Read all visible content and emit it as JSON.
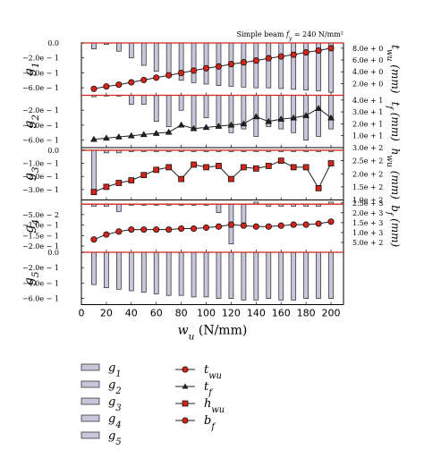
{
  "annotation": "Simple beam f_y = 240 N/mm²",
  "x_axis": {
    "label": "w_u (N/mm)",
    "ticks": [
      0,
      20,
      40,
      60,
      80,
      100,
      120,
      140,
      160,
      180,
      200
    ],
    "range": [
      0,
      210
    ]
  },
  "colors": {
    "bar_fill": "#c9c6dc",
    "bar_stroke": "#222222",
    "line": "#222222",
    "marker": "#d0261c",
    "zero_line": "#d0261c"
  },
  "chart_data": {
    "type": "bar",
    "x": [
      10,
      20,
      30,
      40,
      50,
      60,
      70,
      80,
      90,
      100,
      110,
      120,
      130,
      140,
      150,
      160,
      170,
      180,
      190,
      200
    ],
    "panels": [
      {
        "bar_label": "g1",
        "line_label": "t_wu",
        "ylabel_left": "g1",
        "ylabel_right": "t_wu (mm)",
        "left_ticks": [
          "0.0",
          "−2.0e − 1",
          "−4.0e − 1",
          "−6.0e − 1"
        ],
        "left_values": [
          0,
          -0.2,
          -0.4,
          -0.6
        ],
        "left_range": [
          0,
          -0.7
        ],
        "right_ticks": [
          "8.0e + 0",
          "6.0e + 0",
          "4.0e + 0",
          "2.0e + 0"
        ],
        "right_values": [
          8,
          6,
          4,
          2
        ],
        "right_range": [
          0,
          8.9
        ],
        "bars": [
          -0.08,
          -0.02,
          -0.11,
          -0.2,
          -0.3,
          -0.38,
          -0.45,
          -0.5,
          -0.53,
          -0.55,
          -0.57,
          -0.58,
          -0.59,
          -0.6,
          -0.6,
          -0.61,
          -0.62,
          -0.63,
          -0.64,
          -0.66
        ],
        "line": [
          1.1,
          1.5,
          1.8,
          2.2,
          2.6,
          3.0,
          3.4,
          3.8,
          4.2,
          4.6,
          4.9,
          5.3,
          5.6,
          5.9,
          6.3,
          6.6,
          6.9,
          7.3,
          7.6,
          8.0
        ],
        "marker": "circle"
      },
      {
        "bar_label": "g2",
        "line_label": "t_f",
        "ylabel_left": "g2",
        "ylabel_right": "t_f (mm)",
        "left_ticks": [
          "−2.0e − 1",
          "−4.0e − 1",
          "−6.0e − 1"
        ],
        "left_values": [
          -0.2,
          -0.4,
          -0.6
        ],
        "left_range": [
          0,
          -0.7
        ],
        "right_ticks": [
          "4.0e + 1",
          "3.0e + 1",
          "2.0e + 1",
          "1.0e + 1"
        ],
        "right_values": [
          40,
          30,
          20,
          10
        ],
        "right_range": [
          0,
          44
        ],
        "bars": [
          -0.02,
          -0.01,
          -0.01,
          -0.12,
          -0.12,
          -0.35,
          -0.42,
          -0.2,
          -0.45,
          -0.3,
          -0.4,
          -0.5,
          -0.45,
          -0.55,
          -0.42,
          -0.45,
          -0.5,
          -0.6,
          -0.55,
          -0.45
        ],
        "line": [
          7,
          8,
          9,
          10,
          11,
          12,
          13,
          19,
          16,
          17,
          18,
          19,
          20,
          26,
          22,
          24,
          25,
          27,
          33,
          25
        ],
        "marker": "triangle"
      },
      {
        "bar_label": "g3",
        "line_label": "h_wu",
        "ylabel_left": "g3",
        "ylabel_right": "h_wu (mm)",
        "left_ticks": [
          "0.0",
          "−1.0e − 1",
          "−2.0e − 1",
          "−3.0e − 1"
        ],
        "left_values": [
          0,
          -0.1,
          -0.2,
          -0.3
        ],
        "left_range": [
          0.02,
          -0.38
        ],
        "right_ticks": [
          "3.0e + 2",
          "2.5e + 2",
          "2.0e + 2",
          "1.5e + 2",
          "1.0e + 2"
        ],
        "right_values": [
          300,
          250,
          200,
          150,
          100
        ],
        "right_range": [
          100,
          300
        ],
        "bars": [
          -0.3,
          -0.02,
          -0.02,
          -0.01,
          -0.01,
          -0.01,
          -0.01,
          -0.01,
          -0.01,
          -0.01,
          -0.01,
          -0.01,
          -0.01,
          -0.01,
          -0.01,
          -0.01,
          -0.01,
          -0.01,
          -0.01,
          -0.01
        ],
        "line": [
          130,
          150,
          165,
          175,
          195,
          215,
          225,
          180,
          235,
          225,
          230,
          180,
          225,
          220,
          230,
          250,
          225,
          225,
          145,
          240
        ],
        "marker": "square"
      },
      {
        "bar_label": "g4",
        "line_label": "b_f",
        "ylabel_left": "g4",
        "ylabel_right": "b_f (mm)",
        "left_ticks": [
          "−5.0e − 2",
          "−1.0e − 1",
          "−1.5e − 1",
          "−2.0e − 1"
        ],
        "left_values": [
          -0.05,
          -0.1,
          -0.15,
          -0.2
        ],
        "left_range": [
          0.02,
          -0.23
        ],
        "right_ticks": [
          "2.5e + 3",
          "2.0e + 3",
          "1.5e + 3",
          "1.0e + 3",
          "5.0e + 2"
        ],
        "right_values": [
          2500,
          2000,
          1500,
          1000,
          500
        ],
        "right_range": [
          0,
          2650
        ],
        "bars": [
          -0.01,
          -0.01,
          -0.035,
          -0.005,
          -0.005,
          -0.005,
          -0.005,
          -0.005,
          -0.005,
          -0.005,
          -0.04,
          -0.19,
          -0.09,
          0.01,
          -0.01,
          -0.01,
          -0.01,
          -0.01,
          -0.01,
          0.01
        ],
        "line": [
          650,
          900,
          1050,
          1150,
          1150,
          1150,
          1150,
          1200,
          1200,
          1250,
          1300,
          1400,
          1350,
          1300,
          1300,
          1350,
          1400,
          1400,
          1450,
          1550
        ],
        "marker": "circle"
      },
      {
        "bar_label": "g5",
        "line_label": "",
        "ylabel_left": "g5",
        "ylabel_right": "",
        "left_ticks": [
          "0.0",
          "−2.0e − 1",
          "−4.0e − 1",
          "−6.0e − 1"
        ],
        "left_values": [
          0,
          -0.2,
          -0.4,
          -0.6
        ],
        "left_range": [
          0,
          -0.68
        ],
        "right_ticks": [],
        "right_values": [],
        "right_range": [
          0,
          1
        ],
        "bars": [
          -0.42,
          -0.46,
          -0.48,
          -0.5,
          -0.52,
          -0.54,
          -0.56,
          -0.56,
          -0.58,
          -0.58,
          -0.6,
          -0.6,
          -0.62,
          -0.62,
          -0.6,
          -0.62,
          -0.62,
          -0.6,
          -0.6,
          -0.6
        ],
        "line": [],
        "marker": ""
      }
    ]
  },
  "legend": {
    "bars": [
      "g1",
      "g2",
      "g3",
      "g4",
      "g5"
    ],
    "lines": [
      "t_wu",
      "t_f",
      "h_wu",
      "b_f"
    ],
    "line_markers": [
      "circle",
      "triangle",
      "square",
      "circle"
    ]
  }
}
